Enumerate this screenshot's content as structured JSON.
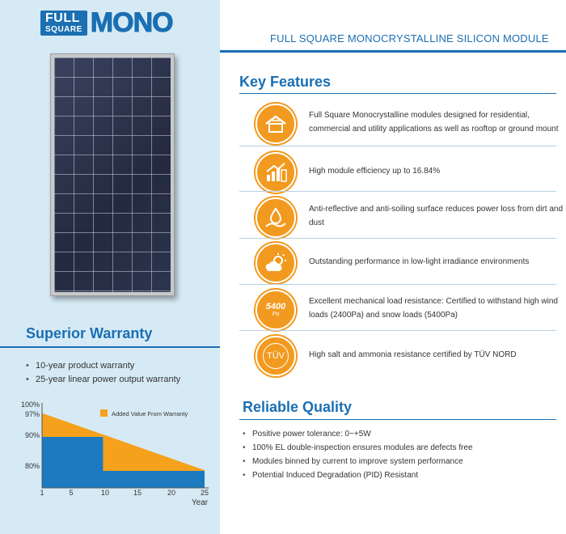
{
  "logo": {
    "full": "FULL",
    "square": "SQUARE",
    "mono": "MONO"
  },
  "module_title": "FULL SQUARE MONOCRYSTALLINE SILICON MODULE",
  "key_features": {
    "title": "Key Features",
    "items": [
      {
        "icon": "house-icon",
        "text": "Full Square Monocrystalline modules designed for residential, commercial and utility applications as well as rooftop or ground mount"
      },
      {
        "icon": "efficiency-chart-icon",
        "text": "High module efficiency up to 16.84%"
      },
      {
        "icon": "droplet-icon",
        "text": "Anti-reflective and anti-soiling surface reduces power loss from dirt and dust"
      },
      {
        "icon": "sun-cloud-icon",
        "text": "Outstanding performance in low-light irradiance environments"
      },
      {
        "icon": "pressure-gauge-icon",
        "icon_text": "5400",
        "icon_subtext": "Pa",
        "text": "Excellent mechanical load resistance: Certified to withstand high wind loads (2400Pa) and snow loads (5400Pa)"
      },
      {
        "icon": "tuv-icon",
        "icon_text": "TÜV",
        "text": "High salt and ammonia resistance certified by TÜV NORD"
      }
    ]
  },
  "warranty": {
    "title": "Superior Warranty",
    "bullets": [
      "10-year product warranty",
      "25-year linear power output warranty"
    ]
  },
  "reliable_quality": {
    "title": "Reliable Quality",
    "bullets": [
      "Positive power tolerance: 0~+5W",
      "100% EL double-inspection ensures modules are defects free",
      "Modules binned by current to improve system performance",
      "Potential Induced Degradation (PID) Resistant"
    ]
  },
  "chart_data": {
    "type": "area",
    "legend": "Added Value From Warranty",
    "y_ticks": [
      "100%",
      "97%",
      "90%",
      "80%"
    ],
    "x_ticks": [
      "1",
      "5",
      "10",
      "15",
      "20",
      "25"
    ],
    "xlabel": "Year",
    "colors": {
      "warranty": "#f5a11c",
      "standard": "#1b7ac0"
    },
    "series": [
      {
        "x": [
          1,
          25
        ],
        "values": [
          97,
          80.2
        ]
      },
      {
        "x": [
          1,
          10,
          10,
          25
        ],
        "values": [
          90,
          90,
          80,
          80
        ]
      }
    ],
    "xlim": [
      1,
      25
    ],
    "ylim": [
      75,
      100
    ]
  }
}
